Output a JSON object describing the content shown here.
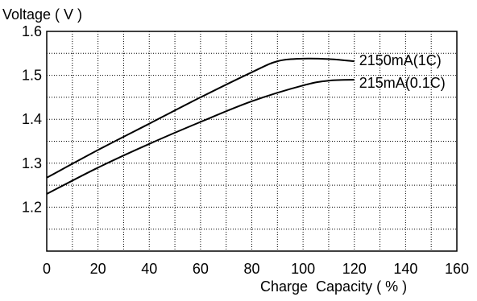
{
  "chart_data": {
    "type": "line",
    "title": "",
    "xlabel": "Charge  Capacity ( % )",
    "ylabel": "Voltage ( V )",
    "xlim": [
      0,
      160
    ],
    "ylim": [
      1.1,
      1.6
    ],
    "x_ticks": [
      "0",
      "20",
      "40",
      "60",
      "80",
      "100",
      "120",
      "140",
      "160"
    ],
    "y_ticks": [
      "1.2",
      "1.3",
      "1.4",
      "1.5",
      "1.6"
    ],
    "grid": true,
    "grid_style": "dotted",
    "series": [
      {
        "name": "2150mA(1C)",
        "x": [
          0,
          20,
          40,
          60,
          80,
          90,
          100,
          110,
          120
        ],
        "y": [
          1.267,
          1.33,
          1.39,
          1.45,
          1.507,
          1.532,
          1.538,
          1.537,
          1.532
        ]
      },
      {
        "name": "215mA(0.1C)",
        "x": [
          0,
          20,
          40,
          60,
          80,
          100,
          110,
          120
        ],
        "y": [
          1.23,
          1.29,
          1.344,
          1.394,
          1.441,
          1.477,
          1.488,
          1.49
        ]
      }
    ]
  }
}
